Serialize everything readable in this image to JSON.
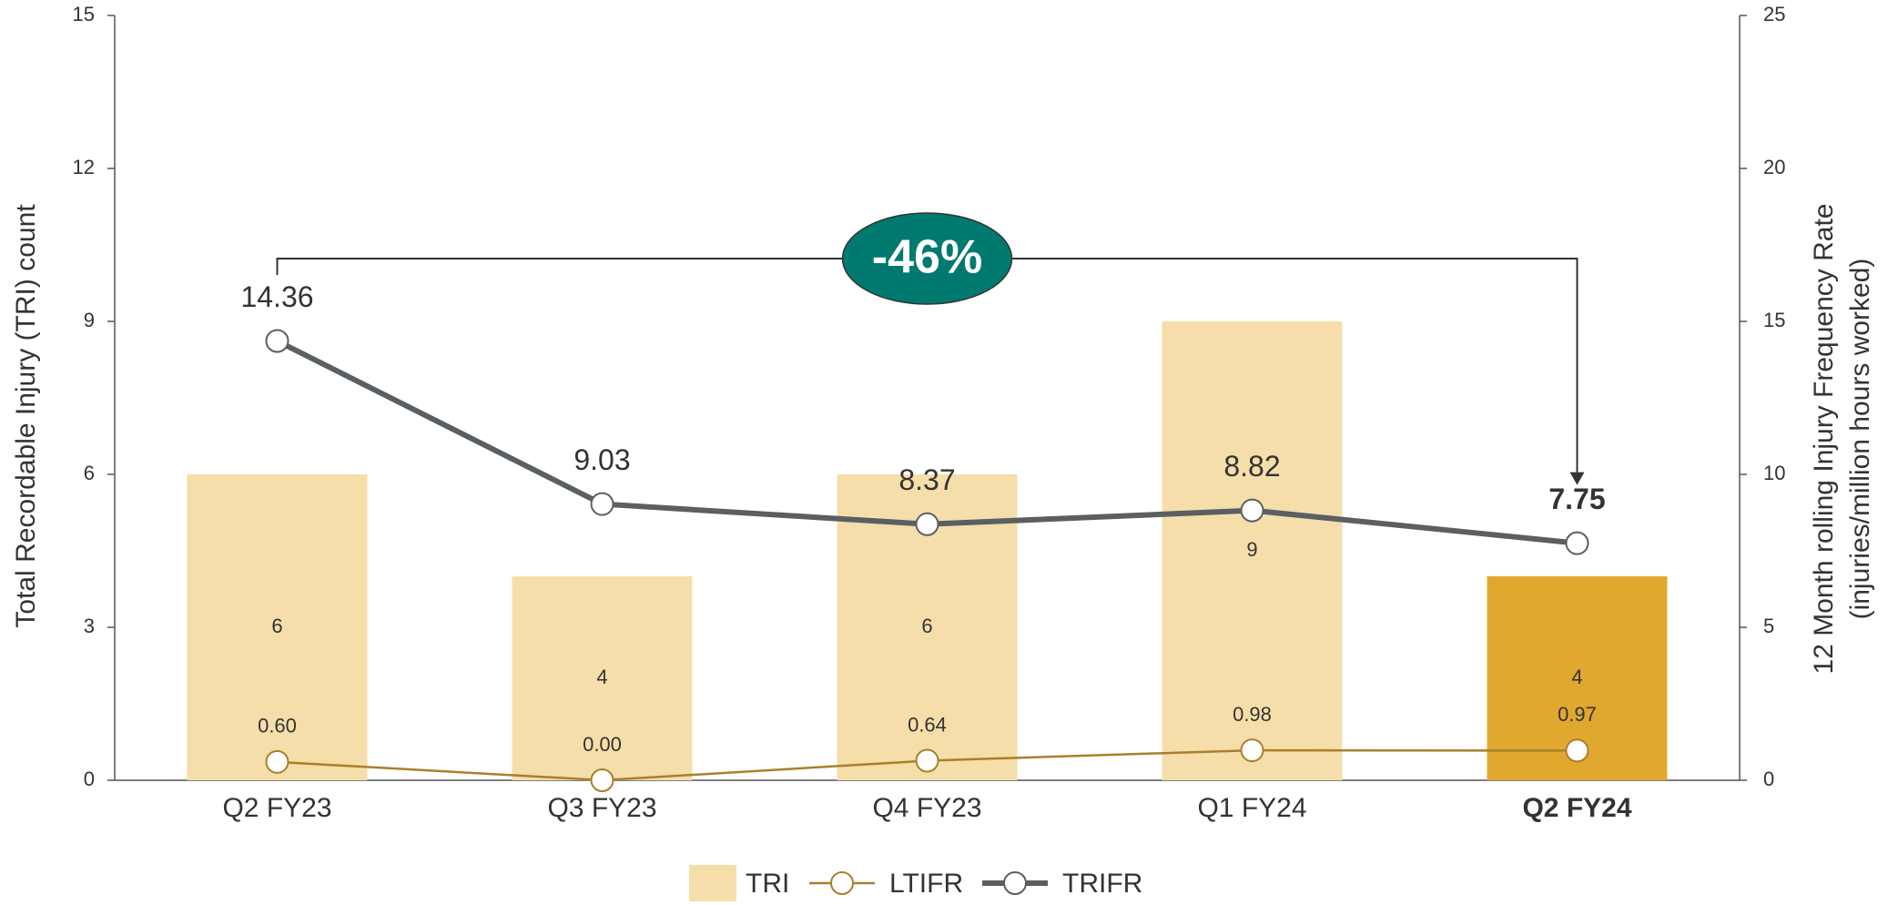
{
  "chart_data": {
    "type": "bar_line",
    "categories": [
      "Q2 FY23",
      "Q3 FY23",
      "Q4 FY23",
      "Q1 FY24",
      "Q2 FY24"
    ],
    "y_label": "Total Recordable Injury (TRI) count",
    "y2_label": [
      "12 Month rolling Injury Frequency Rate",
      "(injuries/million hours worked)"
    ],
    "ylim": [
      0,
      15
    ],
    "yticks": [
      0,
      3,
      6,
      9,
      12,
      15
    ],
    "y2lim": [
      0,
      25
    ],
    "y2ticks": [
      0,
      5,
      10,
      15,
      20,
      25
    ],
    "series": [
      {
        "name": "TRI",
        "type": "bar",
        "colors": [
          "#f5deaa",
          "#f5deaa",
          "#f5deaa",
          "#f5deaa",
          "#e0a82e"
        ],
        "values": [
          6,
          4,
          6,
          9,
          4
        ]
      },
      {
        "name": "LTIFR",
        "type": "line",
        "axis": "y2",
        "color": "#a8802a",
        "values": [
          0.6,
          0,
          0.64,
          0.98,
          0.97
        ],
        "value_labels": [
          "0.60",
          "0.00",
          "0.64",
          "0.98",
          "0.97"
        ]
      },
      {
        "name": "TRIFR",
        "type": "line",
        "axis": "y2",
        "color": "#5a5f63",
        "values": [
          14.36,
          9.03,
          8.37,
          8.82,
          7.75
        ]
      }
    ],
    "annotation": "-46%",
    "annotation_color": "#007a6e"
  }
}
